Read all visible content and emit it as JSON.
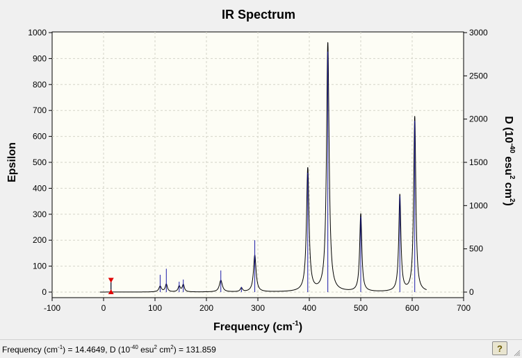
{
  "chart_data": {
    "type": "line",
    "title": "IR Spectrum",
    "xlabel": "Frequency (cm",
    "xlabel_sup": "-1",
    "xlabel_tail": ")",
    "ylabel_left": "Epsilon",
    "ylabel_right": "D (10",
    "ylabel_right_sup1": "-40",
    "ylabel_right_mid": " esu",
    "ylabel_right_sup2": "2",
    "ylabel_right_mid2": " cm",
    "ylabel_right_sup3": "2",
    "ylabel_right_tail": ")",
    "xlim": [
      -100,
      700
    ],
    "ylim_left": [
      0,
      1000
    ],
    "ylim_right": [
      0,
      3000
    ],
    "x_ticks": [
      -100,
      0,
      100,
      200,
      300,
      400,
      500,
      600,
      700
    ],
    "y_ticks_left": [
      0,
      100,
      200,
      300,
      400,
      500,
      600,
      700,
      800,
      900,
      1000
    ],
    "y_ticks_right": [
      0,
      500,
      1000,
      1500,
      2000,
      2500,
      3000
    ],
    "curve_x_range": [
      -7,
      628
    ],
    "peaks": [
      {
        "x": 110,
        "epsilon": 22,
        "width": 6
      },
      {
        "x": 122,
        "epsilon": 30,
        "width": 5
      },
      {
        "x": 147,
        "epsilon": 22,
        "width": 5
      },
      {
        "x": 155,
        "epsilon": 28,
        "width": 5
      },
      {
        "x": 228,
        "epsilon": 45,
        "width": 7
      },
      {
        "x": 268,
        "epsilon": 15,
        "width": 5
      },
      {
        "x": 294,
        "epsilon": 142,
        "width": 6
      },
      {
        "x": 397,
        "epsilon": 475,
        "width": 6
      },
      {
        "x": 436,
        "epsilon": 960,
        "width": 6
      },
      {
        "x": 500,
        "epsilon": 300,
        "width": 5
      },
      {
        "x": 576,
        "epsilon": 372,
        "width": 5
      },
      {
        "x": 605,
        "epsilon": 675,
        "width": 5
      }
    ],
    "sticks": [
      {
        "x": 14.4649,
        "d": 131.859
      },
      {
        "x": 110,
        "d": 200
      },
      {
        "x": 122,
        "d": 270
      },
      {
        "x": 147,
        "d": 120
      },
      {
        "x": 155,
        "d": 145
      },
      {
        "x": 228,
        "d": 250
      },
      {
        "x": 268,
        "d": 60
      },
      {
        "x": 294,
        "d": 600
      },
      {
        "x": 397,
        "d": 1380
      },
      {
        "x": 436,
        "d": 2780
      },
      {
        "x": 500,
        "d": 870
      },
      {
        "x": 576,
        "d": 1110
      },
      {
        "x": 605,
        "d": 1980
      }
    ],
    "marker": {
      "x": 14.4649,
      "d": 131.859
    },
    "colors": {
      "plot_bg": "#fdfdf5",
      "grid": "#d4d4c8",
      "curve": "#000000",
      "sticks": "#1a1aa8",
      "marker": "#e00000"
    }
  },
  "status": {
    "prefix": "Frequency (cm",
    "sup1": "-1",
    "mid": ") = 14.4649, D (10",
    "sup2": "-40",
    "mid2": " esu",
    "sup3": "2",
    "mid3": " cm",
    "sup4": "2",
    "tail": ") = 131.859"
  },
  "help_button_label": "?",
  "help_icon": "help-icon"
}
